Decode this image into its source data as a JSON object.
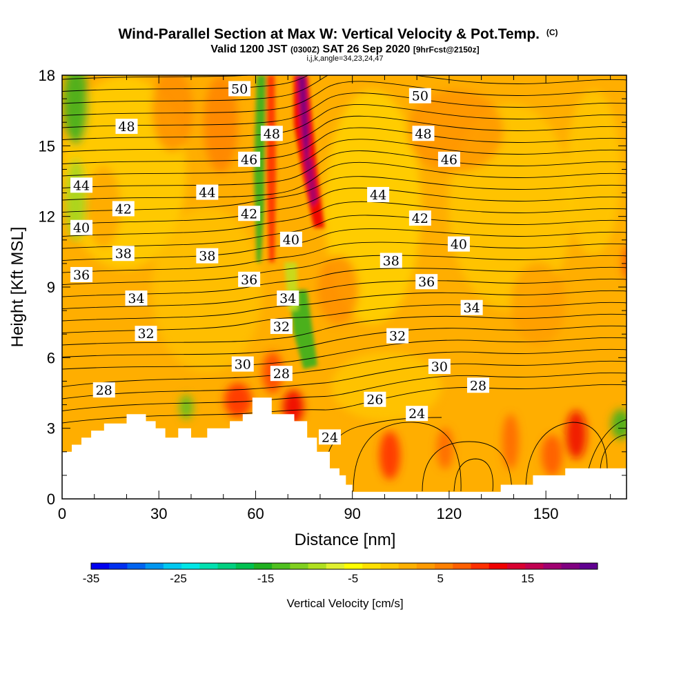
{
  "chart_data": {
    "type": "heatmap",
    "title": "Wind-Parallel Section at Max W: Vertical Velocity & Pot.Temp.",
    "title_suffix": "(C)",
    "subtitle_main": "Valid 1200 JST",
    "subtitle_utc": "(0300Z)",
    "subtitle_date": "SAT 26 Sep 2020",
    "subtitle_fcst": "[9hrFcst@2150z]",
    "subtitle2": "i,j,k,angle=34,23,24,47",
    "xlabel": "Distance [nm]",
    "ylabel": "Height [Kft MSL]",
    "xlim": [
      0,
      175
    ],
    "ylim": [
      0,
      18
    ],
    "xticks": [
      0,
      30,
      60,
      90,
      120,
      150
    ],
    "yticks": [
      0,
      3,
      6,
      9,
      12,
      15,
      18
    ],
    "colorbar": {
      "label": "Vertical Velocity [cm/s]",
      "min": -35,
      "max": 23,
      "ticks": [
        -35,
        -25,
        -15,
        -5,
        5,
        15
      ],
      "colors": [
        "#0000f0",
        "#0030f0",
        "#0064f0",
        "#0096f0",
        "#00c8f0",
        "#00e6e6",
        "#00e0b0",
        "#00d080",
        "#00c050",
        "#20b020",
        "#50c020",
        "#80d020",
        "#b0e020",
        "#e0f030",
        "#ffff00",
        "#ffe000",
        "#ffc800",
        "#ffb000",
        "#ff9a00",
        "#ff8000",
        "#ff6000",
        "#ff3000",
        "#f00000",
        "#d80030",
        "#c00050",
        "#a00070",
        "#800080",
        "#600090"
      ]
    },
    "contour_labels": [
      {
        "x": 55,
        "y": 17.4,
        "text": "50"
      },
      {
        "x": 111,
        "y": 17.1,
        "text": "50"
      },
      {
        "x": 20,
        "y": 15.8,
        "text": "48"
      },
      {
        "x": 65,
        "y": 15.5,
        "text": "48"
      },
      {
        "x": 112,
        "y": 15.5,
        "text": "48"
      },
      {
        "x": 58,
        "y": 14.4,
        "text": "46"
      },
      {
        "x": 120,
        "y": 14.4,
        "text": "46"
      },
      {
        "x": 6,
        "y": 13.3,
        "text": "44"
      },
      {
        "x": 45,
        "y": 13.0,
        "text": "44"
      },
      {
        "x": 98,
        "y": 12.9,
        "text": "44"
      },
      {
        "x": 19,
        "y": 12.3,
        "text": "42"
      },
      {
        "x": 58,
        "y": 12.1,
        "text": "42"
      },
      {
        "x": 111,
        "y": 11.9,
        "text": "42"
      },
      {
        "x": 6,
        "y": 11.5,
        "text": "40"
      },
      {
        "x": 71,
        "y": 11.0,
        "text": "40"
      },
      {
        "x": 123,
        "y": 10.8,
        "text": "40"
      },
      {
        "x": 19,
        "y": 10.4,
        "text": "38"
      },
      {
        "x": 45,
        "y": 10.3,
        "text": "38"
      },
      {
        "x": 102,
        "y": 10.1,
        "text": "38"
      },
      {
        "x": 6,
        "y": 9.5,
        "text": "36"
      },
      {
        "x": 58,
        "y": 9.3,
        "text": "36"
      },
      {
        "x": 113,
        "y": 9.2,
        "text": "36"
      },
      {
        "x": 23,
        "y": 8.5,
        "text": "34"
      },
      {
        "x": 70,
        "y": 8.5,
        "text": "34"
      },
      {
        "x": 127,
        "y": 8.1,
        "text": "34"
      },
      {
        "x": 26,
        "y": 7.0,
        "text": "32"
      },
      {
        "x": 68,
        "y": 7.3,
        "text": "32"
      },
      {
        "x": 104,
        "y": 6.9,
        "text": "32"
      },
      {
        "x": 56,
        "y": 5.7,
        "text": "30"
      },
      {
        "x": 117,
        "y": 5.6,
        "text": "30"
      },
      {
        "x": 13,
        "y": 4.6,
        "text": "28"
      },
      {
        "x": 68,
        "y": 5.3,
        "text": "28"
      },
      {
        "x": 129,
        "y": 4.8,
        "text": "28"
      },
      {
        "x": 97,
        "y": 4.2,
        "text": "26"
      },
      {
        "x": 110,
        "y": 3.6,
        "text": "24"
      },
      {
        "x": 83,
        "y": 2.6,
        "text": "24"
      }
    ],
    "terrain_profile": [
      [
        0,
        2.0
      ],
      [
        3,
        2.0
      ],
      [
        3,
        2.3
      ],
      [
        6,
        2.3
      ],
      [
        6,
        2.6
      ],
      [
        9,
        2.6
      ],
      [
        9,
        2.9
      ],
      [
        13,
        2.9
      ],
      [
        13,
        3.2
      ],
      [
        20,
        3.2
      ],
      [
        20,
        3.6
      ],
      [
        26,
        3.6
      ],
      [
        26,
        3.3
      ],
      [
        29,
        3.3
      ],
      [
        29,
        3.0
      ],
      [
        32,
        3.0
      ],
      [
        32,
        2.6
      ],
      [
        36,
        2.6
      ],
      [
        36,
        3.0
      ],
      [
        40,
        3.0
      ],
      [
        40,
        2.6
      ],
      [
        45,
        2.6
      ],
      [
        45,
        3.0
      ],
      [
        52,
        3.0
      ],
      [
        52,
        3.3
      ],
      [
        56,
        3.3
      ],
      [
        56,
        3.6
      ],
      [
        59,
        3.6
      ],
      [
        59,
        4.3
      ],
      [
        65,
        4.3
      ],
      [
        65,
        3.6
      ],
      [
        72,
        3.6
      ],
      [
        72,
        3.3
      ],
      [
        76,
        3.3
      ],
      [
        76,
        2.6
      ],
      [
        79,
        2.6
      ],
      [
        79,
        2.0
      ],
      [
        83,
        2.0
      ],
      [
        83,
        1.3
      ],
      [
        86,
        1.3
      ],
      [
        86,
        1.0
      ],
      [
        88,
        1.0
      ],
      [
        88,
        0.6
      ],
      [
        90,
        0.6
      ],
      [
        90,
        0.3
      ],
      [
        136,
        0.3
      ],
      [
        136,
        0.6
      ],
      [
        146,
        0.6
      ],
      [
        146,
        1.0
      ],
      [
        156,
        1.0
      ],
      [
        156,
        1.3
      ],
      [
        175,
        1.3
      ]
    ]
  }
}
